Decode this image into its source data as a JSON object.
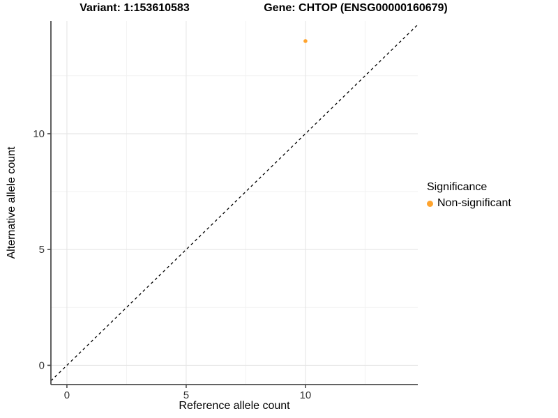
{
  "chart_data": {
    "type": "scatter",
    "title_left": "Variant: 1:153610583",
    "title_right": "Gene: CHTOP (ENSG00000160679)",
    "xlabel": "Reference allele count",
    "ylabel": "Alternative allele count",
    "xlim": [
      -0.67,
      14.71
    ],
    "ylim": [
      -0.83,
      14.87
    ],
    "x_ticks": [
      0,
      5,
      10
    ],
    "y_ticks": [
      0,
      5,
      10
    ],
    "x_minor_ticks": [
      2.5,
      7.5,
      12.5
    ],
    "y_minor_ticks": [
      2.5,
      7.5,
      12.5
    ],
    "grid": true,
    "legend_position": "right",
    "legend_title": "Significance",
    "series": [
      {
        "name": "Non-significant",
        "color": "#FFA42E",
        "points": [
          {
            "x": 10,
            "y": 14
          }
        ]
      }
    ],
    "annotations": [
      {
        "type": "abline",
        "slope": 1,
        "intercept": 0,
        "style": "dashed",
        "color": "#000000",
        "meaning": "identity line y = x"
      }
    ]
  },
  "style": {
    "background": "#FFFFFF",
    "grid_major_color": "#E6E6E6",
    "grid_minor_color": "#F2F2F2",
    "axis_line_color": "#4D4D4D",
    "tick_label_color": "#333333",
    "dashed_line_color": "#000000",
    "point_color": "#FFA42E"
  }
}
